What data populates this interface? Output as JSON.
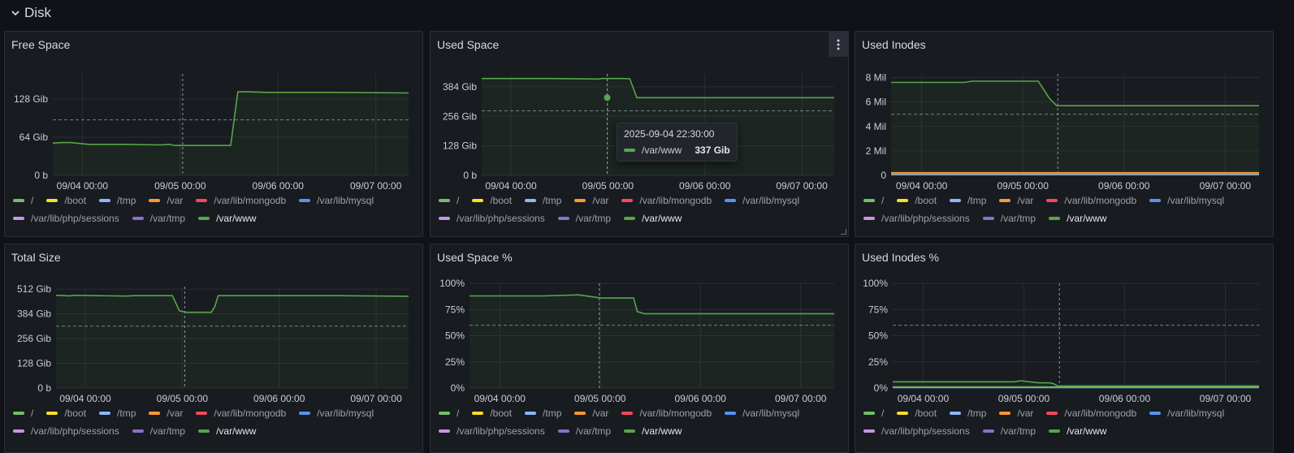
{
  "row": {
    "title": "Disk"
  },
  "series_colors": {
    "/": "#73bf69",
    "/boot": "#fade2a",
    "/tmp": "#8ab8ff",
    "/var": "#ff9830",
    "/var/lib/mongodb": "#f2495c",
    "/var/lib/mysql": "#5794f2",
    "/var/lib/php/sessions": "#ca95e5",
    "/var/tmp": "#8f6dce",
    "/var/www": "#56a64b"
  },
  "legend_items": [
    "/",
    "/boot",
    "/tmp",
    "/var",
    "/var/lib/mongodb",
    "/var/lib/mysql",
    "/var/lib/php/sessions",
    "/var/tmp",
    "/var/www"
  ],
  "x_ticks": [
    "09/04 00:00",
    "09/05 00:00",
    "09/06 00:00",
    "09/07 00:00"
  ],
  "tooltip": {
    "time": "2025-09-04 22:30:00",
    "series": "/var/www",
    "value": "337 Gib"
  },
  "chart_data": [
    {
      "id": "free-space",
      "title": "Free Space",
      "type": "line",
      "y_ticks": [
        "0 b",
        "64 Gib",
        "128 Gib"
      ],
      "ylim": [
        0,
        170
      ],
      "threshold": 93,
      "series": [
        {
          "name": "/var/www",
          "x": [
            0.0,
            0.025,
            0.05,
            0.1,
            0.15,
            0.2,
            0.3,
            0.33,
            0.34,
            0.4,
            0.45,
            0.5,
            0.52,
            0.55,
            0.6,
            0.7,
            0.8,
            1.0
          ],
          "y": [
            54,
            55,
            55,
            52,
            52,
            52,
            51,
            52,
            50,
            50,
            50,
            50,
            140,
            140,
            139,
            139,
            139,
            138
          ]
        }
      ]
    },
    {
      "id": "used-space",
      "title": "Used Space",
      "type": "line",
      "y_ticks": [
        "0 b",
        "128 Gib",
        "256 Gib",
        "384 Gib"
      ],
      "ylim": [
        0,
        440
      ],
      "threshold": 280,
      "series": [
        {
          "name": "/var/www",
          "x": [
            0.0,
            0.2,
            0.33,
            0.34,
            0.4,
            0.42,
            0.44,
            0.7,
            1.0
          ],
          "y": [
            420,
            420,
            418,
            420,
            420,
            419,
            337,
            337,
            337
          ]
        }
      ]
    },
    {
      "id": "used-inodes",
      "title": "Used Inodes",
      "type": "line",
      "y_ticks": [
        "0",
        "2 Mil",
        "4 Mil",
        "6 Mil",
        "8 Mil"
      ],
      "ylim": [
        0,
        8.3
      ],
      "threshold": 5,
      "series": [
        {
          "name": "/var/www",
          "x": [
            0.0,
            0.2,
            0.22,
            0.4,
            0.43,
            0.45,
            1.0
          ],
          "y": [
            7.6,
            7.6,
            7.7,
            7.7,
            6.3,
            5.7,
            5.7
          ]
        },
        {
          "name": "/var",
          "x": [
            0.0,
            1.0
          ],
          "y": [
            0.22,
            0.22
          ]
        },
        {
          "name": "/var/lib/mysql",
          "x": [
            0.0,
            1.0
          ],
          "y": [
            0.15,
            0.15
          ]
        },
        {
          "name": "/var/lib/php/sessions",
          "x": [
            0.0,
            1.0
          ],
          "y": [
            0.1,
            0.1
          ]
        },
        {
          "name": "/",
          "x": [
            0.0,
            1.0
          ],
          "y": [
            0.05,
            0.05
          ]
        }
      ]
    },
    {
      "id": "total-size",
      "title": "Total Size",
      "type": "line",
      "y_ticks": [
        "0 b",
        "128 Gib",
        "256 Gib",
        "384 Gib",
        "512 Gib"
      ],
      "ylim": [
        0,
        525
      ],
      "threshold": 320,
      "series": [
        {
          "name": "/var/www",
          "x": [
            0.0,
            0.04,
            0.05,
            0.2,
            0.22,
            0.33,
            0.35,
            0.37,
            0.42,
            0.44,
            0.45,
            0.46,
            0.6,
            0.8,
            1.0
          ],
          "y": [
            480,
            477,
            480,
            476,
            478,
            478,
            400,
            392,
            392,
            392,
            420,
            478,
            478,
            478,
            475
          ]
        }
      ]
    },
    {
      "id": "used-space-pct",
      "title": "Used Space %",
      "type": "line",
      "y_ticks": [
        "0%",
        "25%",
        "50%",
        "75%",
        "100%"
      ],
      "ylim": [
        0,
        100
      ],
      "threshold": 60,
      "series": [
        {
          "name": "/var/www",
          "x": [
            0.0,
            0.2,
            0.3,
            0.34,
            0.36,
            0.45,
            0.46,
            0.48,
            0.6,
            0.8,
            1.0
          ],
          "y": [
            88,
            88,
            89,
            87,
            86,
            86,
            73,
            71,
            71,
            71,
            71
          ]
        }
      ]
    },
    {
      "id": "used-inodes-pct",
      "title": "Used Inodes %",
      "type": "line",
      "y_ticks": [
        "0%",
        "25%",
        "50%",
        "75%",
        "100%"
      ],
      "ylim": [
        0,
        100
      ],
      "threshold": 60,
      "series": [
        {
          "name": "/var/www",
          "x": [
            0.0,
            0.2,
            0.33,
            0.35,
            0.4,
            0.43,
            0.44,
            0.45,
            0.6,
            1.0
          ],
          "y": [
            6,
            6,
            6,
            7,
            5,
            5,
            4,
            2,
            2,
            2
          ]
        },
        {
          "name": "/",
          "x": [
            0.0,
            1.0
          ],
          "y": [
            1,
            1
          ]
        },
        {
          "name": "/var/lib/mysql",
          "x": [
            0.0,
            1.0
          ],
          "y": [
            0.5,
            0.5
          ]
        }
      ]
    }
  ]
}
